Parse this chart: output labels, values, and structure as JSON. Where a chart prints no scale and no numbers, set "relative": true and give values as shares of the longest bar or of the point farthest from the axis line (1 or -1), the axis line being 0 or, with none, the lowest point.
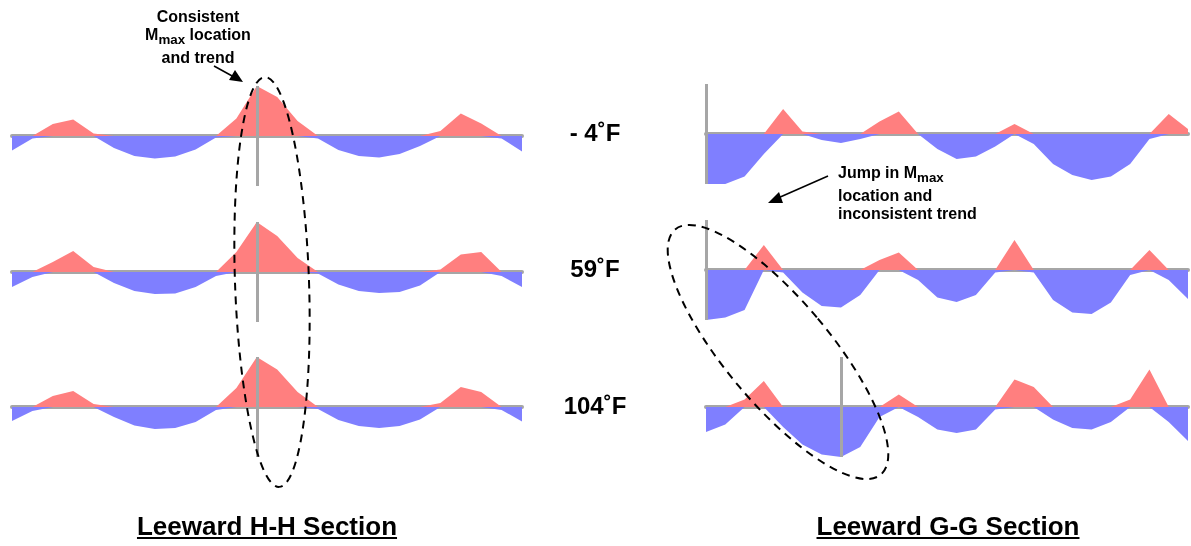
{
  "chart_data": [
    {
      "type": "area",
      "relative": true,
      "annotations": [
        "Consistent M$_{max}$ location and trend"
      ],
      "categories": [
        null,
        null,
        null,
        null,
        null,
        null,
        null,
        null,
        null,
        null,
        null,
        null,
        null,
        null,
        null,
        null,
        null,
        null,
        null,
        null,
        null,
        null,
        null,
        null,
        null,
        null
      ],
      "series": [
        {
          "color": "#ff7f7f",
          "values": [
            0,
            0,
            0.24,
            0.33,
            0.05,
            0,
            0,
            0,
            0,
            0,
            0,
            0.35,
            1,
            0.78,
            0.3,
            0,
            0,
            0,
            0,
            0,
            0,
            0.1,
            0.45,
            0.25,
            0,
            0
          ]
        },
        {
          "color": "#7f7fff",
          "values": [
            -0.29,
            -0.05,
            0,
            0,
            0,
            -0.24,
            -0.4,
            -0.45,
            -0.41,
            -0.27,
            -0.03,
            0,
            0,
            0,
            0,
            -0.05,
            -0.28,
            -0.4,
            -0.43,
            -0.36,
            -0.2,
            0,
            0,
            0,
            -0.05,
            -0.31
          ]
        }
      ]
    },
    {
      "type": "area",
      "relative": true,
      "ylabel": "- 4˚F",
      "annotations": [
        "Jump in M$_{max}$ location and inconsistent trend"
      ],
      "categories": [
        null,
        null,
        null,
        null,
        null,
        null,
        null,
        null,
        null,
        null,
        null,
        null,
        null,
        null,
        null,
        null,
        null,
        null,
        null,
        null,
        null,
        null,
        null,
        null,
        null,
        null
      ],
      "series": [
        {
          "color": "#ff7f7f",
          "values": [
            0,
            0,
            0,
            0,
            0.5,
            0.05,
            0,
            0,
            0,
            0.25,
            0.45,
            0,
            0,
            0,
            0,
            0,
            0.2,
            0,
            0,
            0,
            0,
            0,
            0,
            0,
            0.4,
            0.1
          ]
        },
        {
          "color": "#7f7fff",
          "values": [
            -1,
            -1,
            -0.85,
            -0.4,
            0,
            0,
            -0.12,
            -0.18,
            -0.1,
            0,
            0,
            0,
            -0.3,
            -0.5,
            -0.45,
            -0.25,
            0,
            -0.2,
            -0.6,
            -0.82,
            -0.92,
            -0.85,
            -0.6,
            -0.1,
            0,
            0
          ]
        }
      ]
    },
    {
      "type": "area",
      "relative": true,
      "categories": [
        null,
        null,
        null,
        null,
        null,
        null,
        null,
        null,
        null,
        null,
        null,
        null,
        null,
        null,
        null,
        null,
        null,
        null,
        null,
        null,
        null,
        null,
        null,
        null,
        null,
        null
      ],
      "series": [
        {
          "color": "#ff7f7f",
          "values": [
            0,
            0,
            0.2,
            0.42,
            0.1,
            0,
            0,
            0,
            0,
            0,
            0,
            0.4,
            1,
            0.72,
            0.28,
            0,
            0,
            0,
            0,
            0,
            0,
            0.05,
            0.35,
            0.4,
            0,
            0
          ]
        },
        {
          "color": "#7f7fff",
          "values": [
            -0.3,
            -0.1,
            0,
            0,
            0,
            -0.22,
            -0.38,
            -0.44,
            -0.43,
            -0.3,
            -0.08,
            0,
            0,
            0,
            0,
            -0.03,
            -0.25,
            -0.38,
            -0.42,
            -0.4,
            -0.27,
            0,
            0,
            0,
            -0.08,
            -0.3
          ]
        }
      ]
    },
    {
      "type": "area",
      "relative": true,
      "ylabel": "59˚F",
      "categories": [
        null,
        null,
        null,
        null,
        null,
        null,
        null,
        null,
        null,
        null,
        null,
        null,
        null,
        null,
        null,
        null,
        null,
        null,
        null,
        null,
        null,
        null,
        null,
        null,
        null,
        null
      ],
      "series": [
        {
          "color": "#ff7f7f",
          "values": [
            0,
            0,
            0,
            0.5,
            0,
            0,
            0,
            0,
            0,
            0.2,
            0.35,
            0,
            0,
            0,
            0,
            0,
            0.6,
            0,
            0,
            0,
            0,
            0,
            0,
            0.4,
            0,
            0
          ]
        },
        {
          "color": "#7f7fff",
          "values": [
            -1,
            -0.95,
            -0.8,
            0,
            -0.05,
            -0.45,
            -0.72,
            -0.75,
            -0.5,
            0,
            0,
            -0.2,
            -0.55,
            -0.64,
            -0.5,
            -0.05,
            0,
            -0.05,
            -0.6,
            -0.85,
            -0.88,
            -0.65,
            -0.1,
            0,
            -0.2,
            -0.58
          ]
        }
      ]
    },
    {
      "type": "area",
      "relative": true,
      "xlabel": "Leeward H-H Section",
      "categories": [
        null,
        null,
        null,
        null,
        null,
        null,
        null,
        null,
        null,
        null,
        null,
        null,
        null,
        null,
        null,
        null,
        null,
        null,
        null,
        null,
        null,
        null,
        null,
        null,
        null,
        null
      ],
      "series": [
        {
          "color": "#ff7f7f",
          "values": [
            0,
            0,
            0.22,
            0.32,
            0.06,
            0,
            0,
            0,
            0,
            0,
            0,
            0.38,
            1,
            0.75,
            0.3,
            0,
            0,
            0,
            0,
            0,
            0,
            0.08,
            0.4,
            0.3,
            0,
            0
          ]
        },
        {
          "color": "#7f7fff",
          "values": [
            -0.28,
            -0.08,
            0,
            0,
            0,
            -0.2,
            -0.37,
            -0.44,
            -0.42,
            -0.3,
            -0.06,
            0,
            0,
            0,
            0,
            -0.04,
            -0.26,
            -0.38,
            -0.42,
            -0.38,
            -0.25,
            0,
            0,
            0,
            -0.06,
            -0.29
          ]
        }
      ]
    },
    {
      "type": "area",
      "relative": true,
      "ylabel": "104˚F",
      "xlabel": "Leeward G-G Section",
      "categories": [
        null,
        null,
        null,
        null,
        null,
        null,
        null,
        null,
        null,
        null,
        null,
        null,
        null,
        null,
        null,
        null,
        null,
        null,
        null,
        null,
        null,
        null,
        null,
        null,
        null,
        null
      ],
      "series": [
        {
          "color": "#ff7f7f",
          "values": [
            0,
            0,
            0.15,
            0.52,
            0,
            0,
            0,
            0,
            0,
            0,
            0.25,
            0,
            0,
            0,
            0,
            0,
            0.55,
            0.4,
            0,
            0,
            0,
            0,
            0.15,
            0.75,
            0,
            0
          ]
        },
        {
          "color": "#7f7fff",
          "values": [
            -0.5,
            -0.35,
            0,
            0,
            -0.4,
            -0.75,
            -0.95,
            -1,
            -0.8,
            -0.2,
            0,
            -0.2,
            -0.45,
            -0.52,
            -0.45,
            -0.05,
            0,
            0,
            -0.25,
            -0.42,
            -0.45,
            -0.3,
            0,
            0,
            -0.3,
            -0.68
          ]
        }
      ]
    }
  ]
}
